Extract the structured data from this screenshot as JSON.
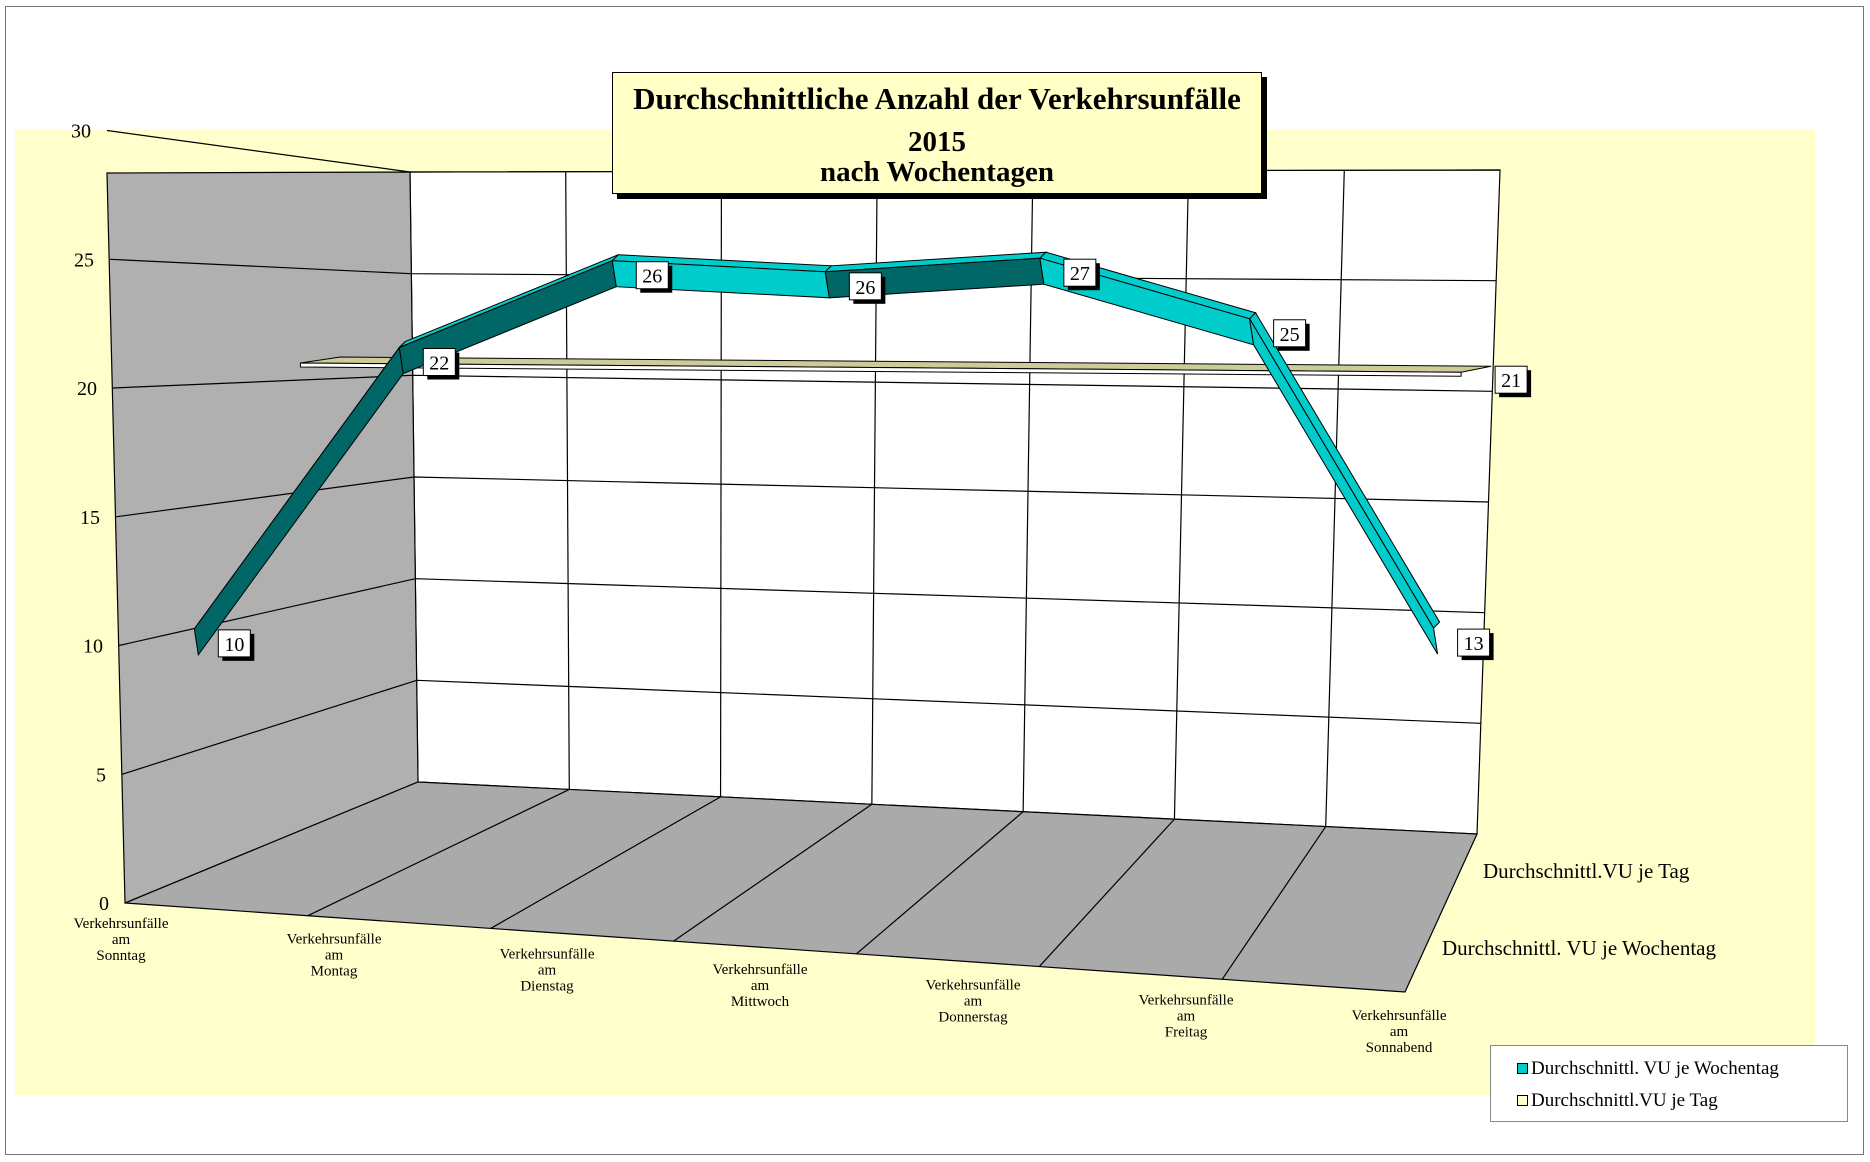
{
  "chart_data": {
    "type": "line",
    "variant": "3d-ribbon",
    "title_lines": [
      "Durchschnittliche Anzahl der Verkehrsunfälle",
      "2015",
      "nach Wochentagen"
    ],
    "categories": [
      [
        "Verkehrsunfälle",
        "am",
        "Sonntag"
      ],
      [
        "Verkehrsunfälle",
        "am",
        "Montag"
      ],
      [
        "Verkehrsunfälle",
        "am",
        "Dienstag"
      ],
      [
        "Verkehrsunfälle",
        "am",
        "Mittwoch"
      ],
      [
        "Verkehrsunfälle",
        "am",
        "Donnerstag"
      ],
      [
        "Verkehrsunfälle",
        "am",
        "Freitag"
      ],
      [
        "Verkehrsunfälle",
        "am",
        "Sonnabend"
      ]
    ],
    "series": [
      {
        "name": "Durchschnittl. VU je Wochentag",
        "values": [
          10,
          22,
          26,
          26,
          27,
          25,
          13
        ],
        "colors": {
          "front": "#00cccc",
          "back": "#006666"
        }
      },
      {
        "name": "Durchschnittl.VU je Tag",
        "values": [
          21,
          21,
          21,
          21,
          21,
          21,
          21
        ],
        "colors": {
          "front": "#cccc99",
          "back": "#cccc99"
        }
      }
    ],
    "depth_labels": [
      "Durchschnittl.VU je Tag",
      "Durchschnittl. VU je Wochentag"
    ],
    "y_ticks": [
      "0",
      "5",
      "10",
      "15",
      "20",
      "25",
      "30"
    ],
    "ylim": [
      0,
      30
    ],
    "grid": true,
    "legend_position": "bottom-right",
    "colors": {
      "plot_area": "#ffffcc",
      "wall_side": "#b0b0b0",
      "floor": "#aaaaaa",
      "wall_back": "#ffffff"
    }
  },
  "legend": [
    {
      "label": "Durchschnittl. VU je Wochentag",
      "color": "#00cccc"
    },
    {
      "label": "Durchschnittl.VU je Tag",
      "color": "#ffffcc"
    }
  ]
}
